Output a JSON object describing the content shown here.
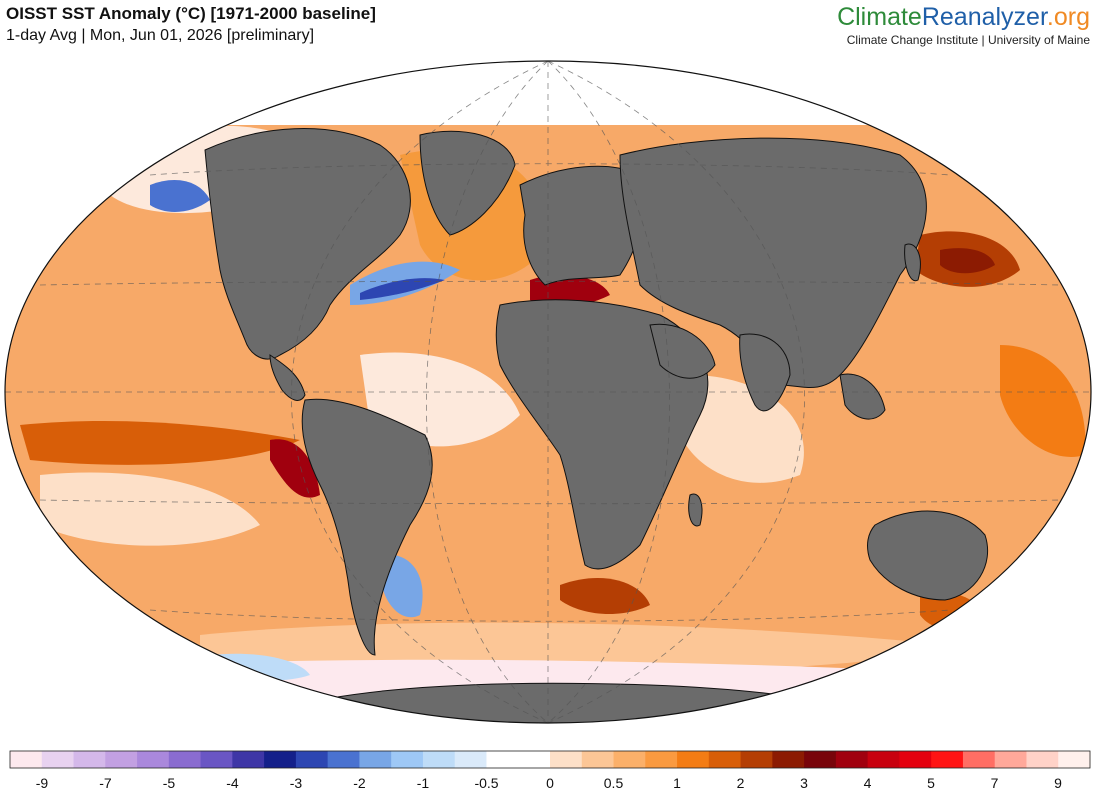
{
  "header": {
    "title": "OISST SST Anomaly (°C) [1971-2000 baseline]",
    "subtitle": "1-day Avg | Mon, Jun 01, 2026 [preliminary]"
  },
  "brand": {
    "name_part1": "Climate",
    "name_part2": "Reanalyzer",
    "name_part3": ".org",
    "affiliation": "Climate Change Institute | University of Maine",
    "colors": {
      "part1": "#2e8b3a",
      "part2": "#1f5fa8",
      "part3": "#f08a24"
    }
  },
  "map": {
    "projection": "Winkel Tripel",
    "graticule": "dashed",
    "land_color": "#6b6b6b",
    "ocean_base_color": "#f7a968"
  },
  "colorbar": {
    "colors": [
      "#fde9ee",
      "#e8d2f0",
      "#d4b8ea",
      "#c2a0e2",
      "#aa88dc",
      "#8a6cd0",
      "#6a56c4",
      "#3e36a6",
      "#14208a",
      "#2d46b2",
      "#4a72d0",
      "#78a6e6",
      "#9ec8f6",
      "#bedcf8",
      "#daeafa",
      "#ffffff",
      "#ffffff",
      "#fde0c8",
      "#fcc696",
      "#fbb06a",
      "#fa9a40",
      "#f37c14",
      "#d85e08",
      "#b43e04",
      "#8c1b02",
      "#78040a",
      "#a0000e",
      "#c8000e",
      "#e4000e",
      "#ff1414",
      "#ff6e64",
      "#ffa89a",
      "#ffd2c8",
      "#fff0ec"
    ],
    "tick_labels": [
      "-9",
      "-7",
      "-5",
      "-4",
      "-3",
      "-2",
      "-1",
      "-0.5",
      "0",
      "0.5",
      "1",
      "2",
      "3",
      "4",
      "5",
      "7",
      "9"
    ]
  }
}
